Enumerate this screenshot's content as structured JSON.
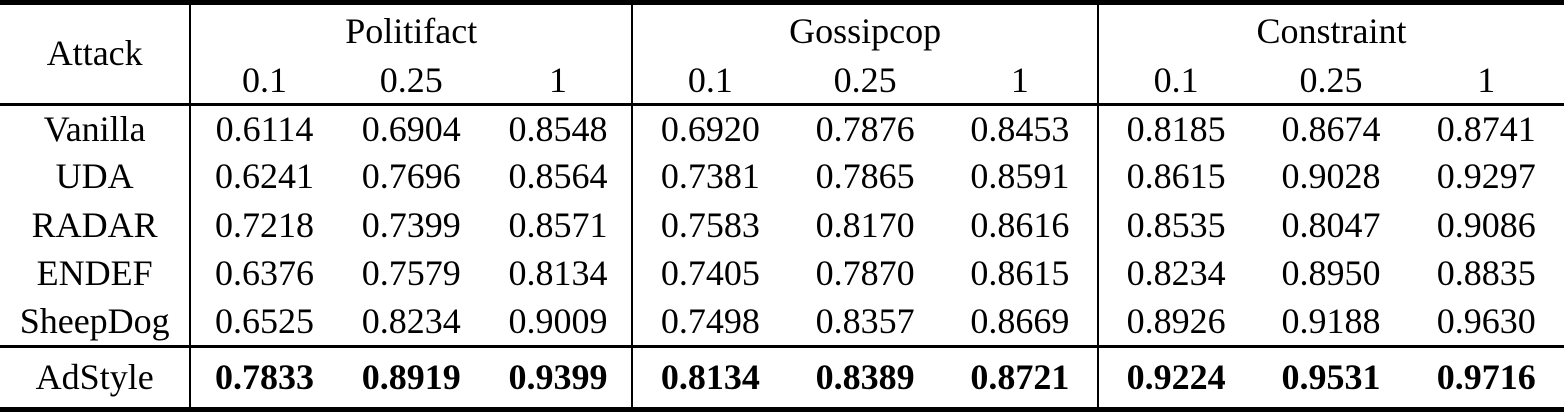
{
  "table": {
    "header": {
      "attack_label": "Attack",
      "groups": [
        {
          "label": "Politifact",
          "thresholds": [
            "0.1",
            "0.25",
            "1"
          ]
        },
        {
          "label": "Gossipcop",
          "thresholds": [
            "0.1",
            "0.25",
            "1"
          ]
        },
        {
          "label": "Constraint",
          "thresholds": [
            "0.1",
            "0.25",
            "1"
          ]
        }
      ]
    },
    "rows": [
      {
        "name": "Vanilla",
        "values": [
          "0.6114",
          "0.6904",
          "0.8548",
          "0.6920",
          "0.7876",
          "0.8453",
          "0.8185",
          "0.8674",
          "0.8741"
        ]
      },
      {
        "name": "UDA",
        "values": [
          "0.6241",
          "0.7696",
          "0.8564",
          "0.7381",
          "0.7865",
          "0.8591",
          "0.8615",
          "0.9028",
          "0.9297"
        ]
      },
      {
        "name": "RADAR",
        "values": [
          "0.7218",
          "0.7399",
          "0.8571",
          "0.7583",
          "0.8170",
          "0.8616",
          "0.8535",
          "0.8047",
          "0.9086"
        ]
      },
      {
        "name": "ENDEF",
        "values": [
          "0.6376",
          "0.7579",
          "0.8134",
          "0.7405",
          "0.7870",
          "0.8615",
          "0.8234",
          "0.8950",
          "0.8835"
        ]
      },
      {
        "name": "SheepDog",
        "values": [
          "0.6525",
          "0.8234",
          "0.9009",
          "0.7498",
          "0.8357",
          "0.8669",
          "0.8926",
          "0.9188",
          "0.9630"
        ]
      }
    ],
    "highlight_row": {
      "name": "AdStyle",
      "values": [
        "0.7833",
        "0.8919",
        "0.9399",
        "0.8134",
        "0.8389",
        "0.8721",
        "0.9224",
        "0.9531",
        "0.9716"
      ]
    }
  }
}
